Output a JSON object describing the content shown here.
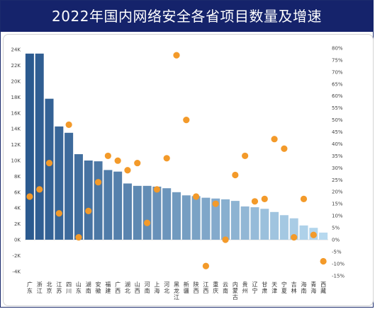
{
  "title": "2022年国内网络安全各省项目数量及增速",
  "colors": {
    "bar_dark": "#2b5a8f",
    "bar_light": "#b7d9ef",
    "dot": "#f39a2a",
    "title_bg": "#15236b"
  },
  "chart_data": {
    "type": "bar",
    "title": "2022年国内网络安全各省项目数量及增速",
    "categories": [
      "广东",
      "浙江",
      "北京",
      "江苏",
      "四川",
      "山东",
      "湖南",
      "安徽",
      "福建",
      "广西",
      "湖北",
      "山西",
      "河南",
      "上海",
      "河北",
      "黑龙江",
      "新疆",
      "陕西",
      "江西",
      "重庆",
      "云南",
      "内蒙古",
      "贵州",
      "辽宁",
      "甘肃",
      "天津",
      "宁夏",
      "吉林",
      "海南",
      "青海",
      "西藏"
    ],
    "left_axis": {
      "ylim": [
        -4000,
        24000
      ],
      "ticks": [
        -4000,
        -2000,
        0,
        2000,
        4000,
        6000,
        8000,
        10000,
        12000,
        14000,
        16000,
        18000,
        20000,
        22000,
        24000
      ],
      "tick_labels": [
        "-4K",
        "-2K",
        "0K",
        "2K",
        "4K",
        "6K",
        "8K",
        "10K",
        "12K",
        "14K",
        "16K",
        "18K",
        "20K",
        "22K",
        "24K"
      ]
    },
    "right_axis": {
      "ylim": [
        -15,
        80
      ],
      "ticks": [
        -15,
        -10,
        -5,
        0,
        5,
        10,
        15,
        20,
        25,
        30,
        35,
        40,
        45,
        50,
        55,
        60,
        65,
        70,
        75,
        80
      ],
      "tick_labels": [
        "-15%",
        "-10%",
        "-5%",
        "0%",
        "5%",
        "10%",
        "15%",
        "20%",
        "25%",
        "30%",
        "35%",
        "40%",
        "45%",
        "50%",
        "55%",
        "60%",
        "65%",
        "70%",
        "75%",
        "80%"
      ]
    },
    "series": [
      {
        "type": "bar",
        "values": [
          23500,
          23500,
          17800,
          14300,
          13500,
          10800,
          10000,
          9900,
          8800,
          8600,
          7100,
          6800,
          6800,
          6700,
          6500,
          6000,
          5600,
          5500,
          5300,
          5200,
          5100,
          4900,
          4200,
          4100,
          3900,
          3500,
          3100,
          2700,
          1800,
          1500,
          900
        ]
      },
      {
        "type": "scatter",
        "values": [
          18,
          21,
          32,
          11,
          48,
          1,
          12,
          24,
          35,
          33,
          29,
          32,
          7,
          21,
          34,
          77,
          50,
          18,
          -11,
          15,
          0,
          27,
          35,
          16,
          17,
          42,
          38,
          1,
          17,
          2,
          -9
        ]
      }
    ],
    "grid": false,
    "legend": "none"
  }
}
